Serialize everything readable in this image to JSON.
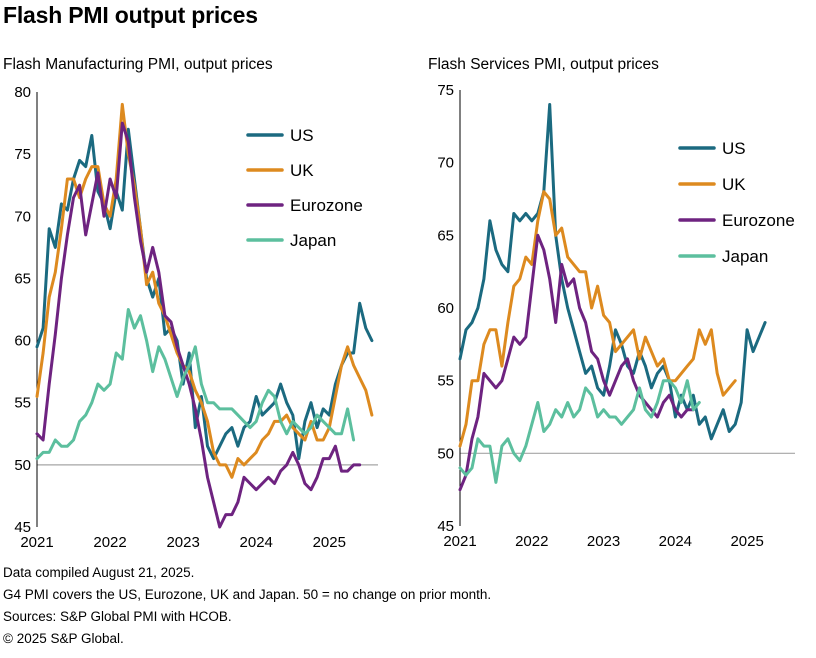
{
  "title": "Flash PMI output prices",
  "footnotes": [
    "Data compiled August 21, 2025.",
    "G4 PMI covers the US, Eurozone, UK and Japan. 50 = no change on prior month.",
    "Sources: S&P Global PMI with HCOB.",
    "© 2025 S&P Global."
  ],
  "colors": {
    "US": "#1b6a80",
    "UK": "#dd8a1f",
    "Eurozone": "#6e2380",
    "Japan": "#5cbf9e",
    "axis": "#000000",
    "grid": "#a6a6a6"
  },
  "chart_data": [
    {
      "type": "line",
      "title": "Flash Manufacturing PMI, output prices",
      "x_ticks": [
        "2021",
        "2022",
        "2023",
        "2024",
        "2025"
      ],
      "ylim": [
        45,
        80
      ],
      "y_ticks": [
        45,
        50,
        55,
        60,
        65,
        70,
        75,
        80
      ],
      "legend_position": "top-right",
      "reference_line": 50,
      "series": [
        {
          "name": "US",
          "values": [
            59.5,
            61.0,
            69.0,
            67.5,
            71.0,
            70.5,
            73.0,
            74.5,
            74.0,
            76.5,
            72.0,
            71.0,
            69.0,
            72.0,
            70.5,
            77.0,
            73.0,
            69.0,
            65.0,
            63.5,
            65.0,
            60.5,
            61.0,
            60.0,
            56.5,
            59.0,
            53.0,
            55.5,
            51.5,
            50.5,
            51.5,
            52.5,
            53.0,
            51.5,
            53.0,
            53.5,
            55.5,
            54.0,
            54.5,
            55.0,
            56.5,
            55.0,
            54.0,
            50.5,
            53.5,
            55.0,
            53.0,
            54.5,
            54.0,
            56.5,
            58.0,
            59.0,
            59.0,
            63.0,
            61.0,
            60.0
          ]
        },
        {
          "name": "UK",
          "values": [
            55.5,
            59.0,
            63.5,
            65.5,
            69.0,
            73.0,
            73.0,
            71.5,
            73.0,
            74.0,
            74.0,
            71.0,
            70.0,
            73.0,
            79.0,
            75.0,
            72.5,
            69.0,
            64.5,
            65.5,
            63.0,
            62.0,
            60.5,
            59.0,
            58.0,
            57.5,
            56.0,
            55.0,
            53.5,
            51.0,
            50.0,
            50.0,
            49.0,
            50.5,
            50.0,
            50.5,
            51.0,
            52.0,
            52.5,
            53.5,
            53.5,
            54.0,
            53.0,
            52.5,
            52.0,
            53.5,
            52.0,
            52.0,
            53.0,
            55.5,
            58.0,
            59.5,
            58.0,
            57.0,
            56.0,
            54.0
          ]
        },
        {
          "name": "Eurozone",
          "values": [
            52.5,
            52.0,
            56.5,
            60.5,
            65.0,
            68.5,
            71.5,
            72.5,
            68.5,
            71.0,
            73.5,
            70.0,
            73.0,
            71.5,
            77.5,
            76.0,
            71.5,
            68.0,
            65.5,
            67.5,
            65.5,
            62.0,
            61.5,
            59.5,
            58.0,
            56.5,
            54.5,
            52.0,
            49.0,
            47.0,
            45.0,
            46.0,
            46.0,
            47.0,
            49.0,
            48.5,
            48.0,
            48.5,
            49.0,
            48.5,
            49.5,
            50.0,
            51.0,
            50.0,
            48.5,
            48.0,
            49.0,
            50.5,
            50.5,
            51.5,
            49.5,
            49.5,
            50.0,
            50.0
          ]
        },
        {
          "name": "Japan",
          "values": [
            50.5,
            51.0,
            51.0,
            52.0,
            51.5,
            51.5,
            52.0,
            53.5,
            54.0,
            55.0,
            56.5,
            56.0,
            56.5,
            59.0,
            58.5,
            62.5,
            61.0,
            62.0,
            60.0,
            57.5,
            59.5,
            58.5,
            57.0,
            55.5,
            57.0,
            58.0,
            59.5,
            56.5,
            55.0,
            55.0,
            54.5,
            54.5,
            54.5,
            54.0,
            53.5,
            53.0,
            53.5,
            55.0,
            56.0,
            55.5,
            53.5,
            52.5,
            53.5,
            53.0,
            52.5,
            53.0,
            54.0,
            53.5,
            53.0,
            52.5,
            52.5,
            54.5,
            52.0
          ]
        }
      ]
    },
    {
      "type": "line",
      "title": "Flash Services PMI, output prices",
      "x_ticks": [
        "2021",
        "2022",
        "2023",
        "2024",
        "2025"
      ],
      "ylim": [
        45,
        75
      ],
      "y_ticks": [
        45,
        50,
        55,
        60,
        65,
        70,
        75
      ],
      "legend_position": "top-right",
      "reference_line": 50,
      "series": [
        {
          "name": "US",
          "values": [
            56.5,
            58.5,
            59.0,
            60.0,
            62.0,
            66.0,
            64.0,
            63.0,
            62.5,
            66.5,
            66.0,
            66.5,
            66.0,
            66.5,
            68.0,
            74.0,
            65.0,
            62.0,
            60.0,
            58.5,
            57.0,
            55.5,
            56.0,
            54.5,
            54.0,
            56.0,
            58.5,
            57.5,
            56.0,
            55.5,
            57.0,
            56.0,
            54.5,
            55.5,
            56.0,
            55.0,
            52.5,
            54.0,
            53.0,
            54.0,
            52.0,
            52.5,
            51.0,
            52.0,
            53.0,
            51.5,
            52.0,
            53.5,
            58.5,
            57.0,
            58.0,
            59.0
          ]
        },
        {
          "name": "UK",
          "values": [
            50.5,
            52.0,
            55.0,
            55.0,
            57.5,
            58.5,
            58.5,
            56.0,
            59.0,
            61.5,
            62.0,
            63.5,
            63.0,
            66.0,
            68.0,
            67.5,
            65.0,
            65.5,
            63.5,
            63.0,
            62.5,
            62.5,
            60.0,
            61.5,
            59.5,
            59.0,
            57.0,
            57.5,
            58.0,
            58.5,
            56.5,
            58.0,
            57.0,
            56.0,
            56.5,
            55.0,
            55.0,
            55.5,
            56.0,
            56.5,
            58.5,
            57.5,
            58.5,
            55.5,
            54.0,
            54.5,
            55.0
          ]
        },
        {
          "name": "Eurozone",
          "values": [
            47.5,
            48.5,
            51.0,
            52.5,
            55.5,
            55.0,
            54.5,
            55.0,
            56.5,
            58.0,
            57.5,
            58.0,
            61.5,
            65.0,
            64.0,
            62.0,
            59.0,
            63.0,
            61.5,
            62.0,
            60.0,
            59.0,
            57.0,
            56.5,
            55.0,
            54.0,
            55.0,
            56.0,
            56.5,
            55.0,
            54.0,
            53.5,
            53.0,
            52.5,
            53.5,
            54.0,
            53.0,
            52.5,
            53.0,
            53.0
          ]
        },
        {
          "name": "Japan",
          "values": [
            49.0,
            48.5,
            49.0,
            51.0,
            50.5,
            50.5,
            48.0,
            50.5,
            51.0,
            50.0,
            49.5,
            50.5,
            52.0,
            53.5,
            51.5,
            52.0,
            53.0,
            52.5,
            53.5,
            52.5,
            53.0,
            54.5,
            54.0,
            52.5,
            53.0,
            52.5,
            52.5,
            52.0,
            52.5,
            53.0,
            54.5,
            53.0,
            52.5,
            53.5,
            55.0,
            55.0,
            54.5,
            53.5,
            55.0,
            53.0,
            53.5
          ]
        }
      ]
    }
  ]
}
